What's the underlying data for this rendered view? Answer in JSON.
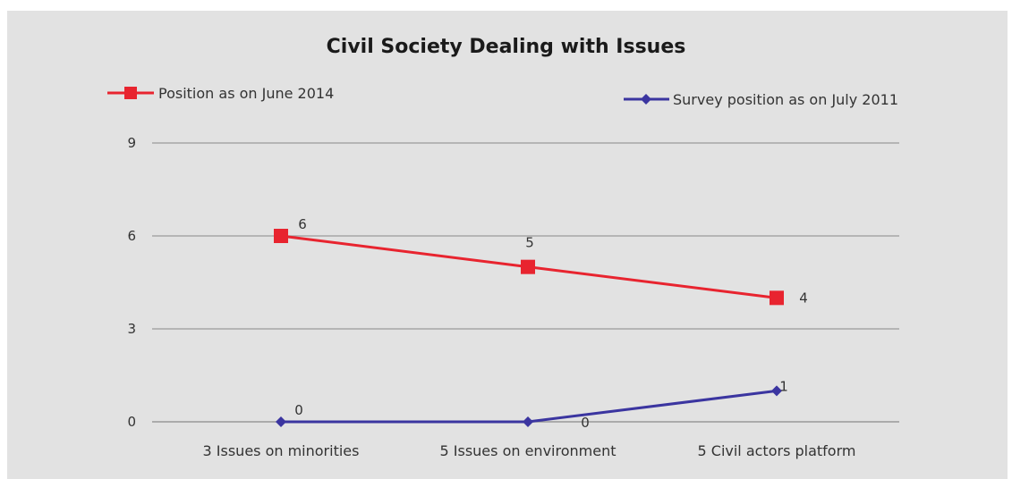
{
  "chart_data": {
    "type": "line",
    "title": "Civil Society Dealing with Issues",
    "categories": [
      "3 Issues on minorities",
      "5 Issues on environment",
      "5 Civil actors platform"
    ],
    "ylim": [
      0,
      9
    ],
    "yticks": [
      0,
      3,
      6,
      9
    ],
    "grid": true,
    "series": [
      {
        "name": "Position as on June 2014",
        "values": [
          6,
          5,
          4
        ],
        "data_labels": [
          "6",
          "5",
          "4"
        ],
        "color": "#e8242f",
        "marker": "square"
      },
      {
        "name": "Survey position as on July 2011",
        "values": [
          0,
          0,
          1
        ],
        "data_labels": [
          "0",
          "0",
          "1"
        ],
        "color": "#3b35a0",
        "marker": "diamond"
      }
    ]
  }
}
